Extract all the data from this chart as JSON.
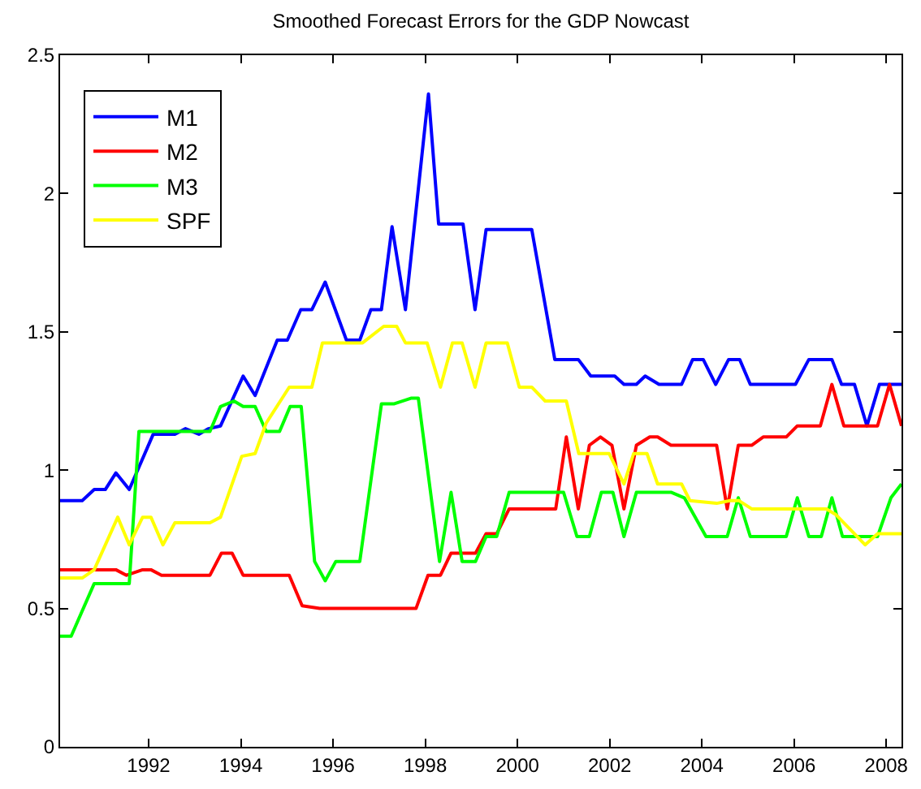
{
  "chart_data": {
    "type": "line",
    "title": "Smoothed Forecast Errors for the GDP Nowcast",
    "xlim": [
      1990.08,
      2008.33
    ],
    "xticks": [
      1992,
      1994,
      1996,
      1998,
      2000,
      2002,
      2004,
      2006,
      2008
    ],
    "ylim": [
      0,
      2.5
    ],
    "yticks": [
      0,
      0.5,
      1,
      1.5,
      2,
      2.5
    ],
    "grid": false,
    "legend": "top left",
    "line_style": "solid",
    "series": [
      {
        "name": "M1",
        "color": "#0000ff",
        "x": [
          1990.08,
          1990.56,
          1990.82,
          1991.06,
          1991.29,
          1991.58,
          1992.1,
          1992.57,
          1992.8,
          1993.09,
          1993.3,
          1993.56,
          1994.05,
          1994.31,
          1994.79,
          1995.01,
          1995.3,
          1995.54,
          1995.83,
          1996.29,
          1996.58,
          1996.82,
          1997.05,
          1997.28,
          1997.57,
          1998.07,
          1998.29,
          1998.82,
          1999.08,
          1999.32,
          2000.31,
          2000.81,
          2001.32,
          2001.59,
          2002.11,
          2002.31,
          2002.58,
          2002.77,
          2003.07,
          2003.56,
          2003.8,
          2004.03,
          2004.3,
          2004.58,
          2004.82,
          2005.05,
          2006.03,
          2006.32,
          2006.82,
          2007.03,
          2007.31,
          2007.58,
          2007.85,
          2008.33
        ],
        "values": [
          0.89,
          0.89,
          0.93,
          0.93,
          0.99,
          0.93,
          1.13,
          1.13,
          1.15,
          1.13,
          1.15,
          1.16,
          1.34,
          1.27,
          1.47,
          1.47,
          1.58,
          1.58,
          1.68,
          1.47,
          1.47,
          1.58,
          1.58,
          1.88,
          1.58,
          2.36,
          1.89,
          1.89,
          1.58,
          1.87,
          1.87,
          1.4,
          1.4,
          1.34,
          1.34,
          1.31,
          1.31,
          1.34,
          1.31,
          1.31,
          1.4,
          1.4,
          1.31,
          1.4,
          1.4,
          1.31,
          1.31,
          1.4,
          1.4,
          1.31,
          1.31,
          1.16,
          1.31,
          1.31
        ]
      },
      {
        "name": "M2",
        "color": "#ff0000",
        "x": [
          1990.08,
          1991.29,
          1991.52,
          1991.87,
          1992.05,
          1992.28,
          1993.33,
          1993.58,
          1993.81,
          1994.05,
          1995.05,
          1995.33,
          1995.71,
          1997.8,
          1998.06,
          1998.33,
          1998.56,
          1999.09,
          1999.32,
          1999.55,
          1999.82,
          2000.83,
          2001.06,
          2001.32,
          2001.56,
          2001.8,
          2002.05,
          2002.31,
          2002.58,
          2002.87,
          2003.04,
          2003.33,
          2004.32,
          2004.55,
          2004.79,
          2005.08,
          2005.33,
          2005.83,
          2006.07,
          2006.57,
          2006.82,
          2007.08,
          2007.81,
          2008.07,
          2008.33
        ],
        "values": [
          0.64,
          0.64,
          0.62,
          0.64,
          0.64,
          0.62,
          0.62,
          0.7,
          0.7,
          0.62,
          0.62,
          0.51,
          0.5,
          0.5,
          0.62,
          0.62,
          0.7,
          0.7,
          0.77,
          0.77,
          0.86,
          0.86,
          1.12,
          0.86,
          1.09,
          1.12,
          1.09,
          0.86,
          1.09,
          1.12,
          1.12,
          1.09,
          1.09,
          0.86,
          1.09,
          1.09,
          1.12,
          1.12,
          1.16,
          1.16,
          1.31,
          1.16,
          1.16,
          1.31,
          1.16
        ]
      },
      {
        "name": "M3",
        "color": "#00ff00",
        "x": [
          1990.08,
          1990.32,
          1990.82,
          1991.58,
          1991.79,
          1993.33,
          1993.56,
          1993.85,
          1994.05,
          1994.31,
          1994.55,
          1994.84,
          1995.07,
          1995.31,
          1995.6,
          1995.83,
          1996.06,
          1996.58,
          1997.05,
          1997.33,
          1997.69,
          1997.85,
          1998.31,
          1998.56,
          1998.8,
          1999.09,
          1999.32,
          1999.55,
          1999.82,
          2001.0,
          2001.29,
          2001.56,
          2001.82,
          2002.07,
          2002.31,
          2002.58,
          2003.33,
          2003.62,
          2004.09,
          2004.55,
          2004.79,
          2005.05,
          2005.83,
          2006.07,
          2006.32,
          2006.59,
          2006.82,
          2007.05,
          2007.81,
          2008.1,
          2008.33
        ],
        "values": [
          0.4,
          0.4,
          0.59,
          0.59,
          1.14,
          1.14,
          1.23,
          1.25,
          1.23,
          1.23,
          1.14,
          1.14,
          1.23,
          1.23,
          0.67,
          0.6,
          0.67,
          0.67,
          1.24,
          1.24,
          1.26,
          1.26,
          0.67,
          0.92,
          0.67,
          0.67,
          0.76,
          0.76,
          0.92,
          0.92,
          0.76,
          0.76,
          0.92,
          0.92,
          0.76,
          0.92,
          0.92,
          0.9,
          0.76,
          0.76,
          0.9,
          0.76,
          0.76,
          0.9,
          0.76,
          0.76,
          0.9,
          0.76,
          0.76,
          0.9,
          0.95
        ]
      },
      {
        "name": "SPF",
        "color": "#ffff00",
        "x": [
          1990.08,
          1990.56,
          1990.82,
          1991.33,
          1991.58,
          1991.87,
          1992.05,
          1992.31,
          1992.57,
          1993.33,
          1993.56,
          1994.02,
          1994.31,
          1994.55,
          1995.05,
          1995.54,
          1995.77,
          1996.64,
          1997.1,
          1997.38,
          1997.57,
          1998.04,
          1998.33,
          1998.59,
          1998.8,
          1999.08,
          1999.32,
          1999.78,
          2000.04,
          2000.31,
          2000.6,
          2001.06,
          2001.33,
          2001.99,
          2002.31,
          2002.52,
          2002.81,
          2003.04,
          2003.56,
          2003.74,
          2004.32,
          2004.61,
          2004.8,
          2005.08,
          2005.89,
          2006.7,
          2006.9,
          2007.54,
          2007.81,
          2008.33
        ],
        "values": [
          0.61,
          0.61,
          0.64,
          0.83,
          0.73,
          0.83,
          0.83,
          0.73,
          0.81,
          0.81,
          0.83,
          1.05,
          1.06,
          1.17,
          1.3,
          1.3,
          1.46,
          1.46,
          1.52,
          1.52,
          1.46,
          1.46,
          1.3,
          1.46,
          1.46,
          1.3,
          1.46,
          1.46,
          1.3,
          1.3,
          1.25,
          1.25,
          1.06,
          1.06,
          0.95,
          1.06,
          1.06,
          0.95,
          0.95,
          0.89,
          0.88,
          0.89,
          0.89,
          0.86,
          0.86,
          0.86,
          0.84,
          0.73,
          0.77,
          0.77
        ]
      }
    ]
  }
}
